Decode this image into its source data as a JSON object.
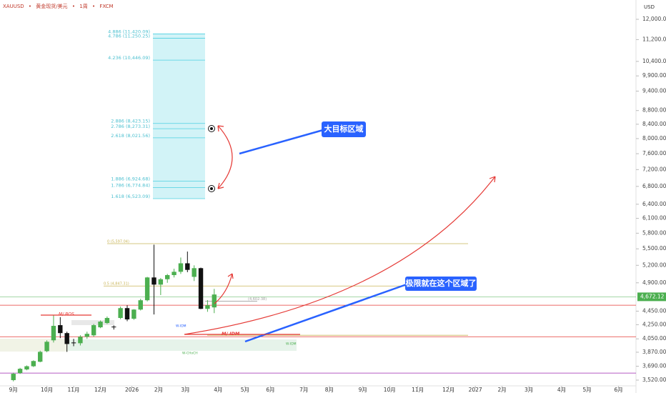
{
  "chart_data": {
    "type": "candlestick",
    "title": "XAUUSD",
    "subtitle": [
      "黄金现货/美元",
      "1周",
      "FXCM"
    ],
    "y_unit": "USD",
    "log_scale": true,
    "ylim": [
      3452,
      12814
    ],
    "yticks": [
      {
        "value": 12000,
        "label": "12,000.00"
      },
      {
        "value": 11200,
        "label": "11,200.00"
      },
      {
        "value": 10400,
        "label": "10,400.00"
      },
      {
        "value": 9900,
        "label": "9,900.00"
      },
      {
        "value": 9400,
        "label": "9,400.00"
      },
      {
        "value": 8800,
        "label": "8,800.00"
      },
      {
        "value": 8400,
        "label": "8,400.00"
      },
      {
        "value": 8000,
        "label": "8,000.00"
      },
      {
        "value": 7600,
        "label": "7,600.00"
      },
      {
        "value": 7200,
        "label": "7,200.00"
      },
      {
        "value": 6800,
        "label": "6,800.00"
      },
      {
        "value": 6400,
        "label": "6,400.00"
      },
      {
        "value": 6100,
        "label": "6,100.00"
      },
      {
        "value": 5800,
        "label": "5,800.00"
      },
      {
        "value": 5500,
        "label": "5,500.00"
      },
      {
        "value": 5200,
        "label": "5,200.00"
      },
      {
        "value": 4900,
        "label": "4,900.00"
      },
      {
        "value": 4450,
        "label": "4,450.00"
      },
      {
        "value": 4250,
        "label": "4,250.00"
      },
      {
        "value": 4050,
        "label": "4,050.00"
      },
      {
        "value": 3870,
        "label": "3,870.00"
      },
      {
        "value": 3690,
        "label": "3,690.00"
      },
      {
        "value": 3520,
        "label": "3,520.00"
      }
    ],
    "xlim": [
      -2,
      93
    ],
    "xticks": [
      {
        "value": 0,
        "label": "9月"
      },
      {
        "value": 5,
        "label": "10月"
      },
      {
        "value": 9,
        "label": "11月"
      },
      {
        "value": 13,
        "label": "12月"
      },
      {
        "value": 17.7,
        "label": "2026"
      },
      {
        "value": 21.7,
        "label": "2月"
      },
      {
        "value": 25.7,
        "label": "3月"
      },
      {
        "value": 30.6,
        "label": "4月"
      },
      {
        "value": 34.6,
        "label": "5月"
      },
      {
        "value": 38.4,
        "label": "6月"
      },
      {
        "value": 43.4,
        "label": "7月"
      },
      {
        "value": 47.2,
        "label": "8月"
      },
      {
        "value": 52.2,
        "label": "9月"
      },
      {
        "value": 56.2,
        "label": "10月"
      },
      {
        "value": 60.4,
        "label": "11月"
      },
      {
        "value": 65,
        "label": "12月"
      },
      {
        "value": 69,
        "label": "2027"
      },
      {
        "value": 73,
        "label": "2月"
      },
      {
        "value": 77,
        "label": "3月"
      },
      {
        "value": 81.9,
        "label": "4月"
      },
      {
        "value": 85.7,
        "label": "5月"
      },
      {
        "value": 90.4,
        "label": "6月"
      }
    ],
    "up_color": "#4caf50",
    "down_color": "#111111",
    "open": [
      3520,
      3605,
      3650,
      3690,
      3747,
      3884,
      4030,
      4243,
      4130,
      4000,
      3990,
      4079,
      4099,
      4212,
      4274,
      4222,
      4348,
      4496,
      4337,
      4474,
      4618,
      4990,
      4870,
      4960,
      5030,
      5087,
      5236,
      5000,
      5150,
      4485,
      4507
    ],
    "high": [
      3610,
      3670,
      3700,
      3765,
      3890,
      4030,
      4390,
      4360,
      4150,
      4050,
      4100,
      4150,
      4260,
      4310,
      4370,
      4240,
      4520,
      4540,
      4480,
      4640,
      5000,
      5578,
      4980,
      5050,
      5140,
      5340,
      5449,
      5200,
      5160,
      4620,
      4800
    ],
    "low": [
      3505,
      3595,
      3640,
      3680,
      3740,
      3870,
      4000,
      4060,
      3875,
      3950,
      3960,
      4050,
      4080,
      4200,
      4260,
      4180,
      4330,
      4300,
      4320,
      4460,
      4600,
      4400,
      4700,
      4900,
      4990,
      5050,
      5080,
      4930,
      4480,
      4440,
      4420
    ],
    "close": [
      3597,
      3658,
      3690,
      3756,
      3875,
      4010,
      4233,
      4130,
      3980,
      3990,
      4079,
      4120,
      4243,
      4295,
      4348,
      4212,
      4496,
      4327,
      4474,
      4618,
      4990,
      4870,
      4960,
      5030,
      5087,
      5236,
      5120,
      5150,
      4485,
      4540,
      4709
    ],
    "last_price": {
      "value": 4672.12,
      "label": "4,672.12"
    },
    "fib_levels": [
      {
        "value": 11420.09,
        "label": "4.886 (11,420.09)"
      },
      {
        "value": 11250.25,
        "label": "4.786 (11,250.25)"
      },
      {
        "value": 10446.09,
        "label": "4.236 (10,446.09)"
      },
      {
        "value": 8423.15,
        "label": "2.886 (8,423.15)"
      },
      {
        "value": 8273.31,
        "label": "2.786 (8,273.31)"
      },
      {
        "value": 8021.56,
        "label": "2.618 (8,021.56)"
      },
      {
        "value": 6924.68,
        "label": "1.886 (6,924.68)"
      },
      {
        "value": 6774.84,
        "label": "1.786 (6,774.84)"
      },
      {
        "value": 6523.09,
        "label": "1.618 (6,523.09)"
      }
    ],
    "fib_color": "#4dd0e1",
    "levels": [
      {
        "value": 5597.04,
        "label": "0 (5,597.04)",
        "color": "#c9b458"
      },
      {
        "value": 4847.31,
        "label": "0.5 (4,847.31)",
        "color": "#c9b458"
      },
      {
        "value": 4602.38,
        "label": "(4,602.38)",
        "color": "#9e9e9e"
      },
      {
        "value": 4541,
        "color": "#e53935"
      },
      {
        "value": 4100,
        "color": "#c9b458"
      },
      {
        "value": 4079,
        "color": "#e53935"
      },
      {
        "value": 3605,
        "color": "#9c27b0"
      }
    ],
    "markers": [
      "M/ BOS",
      "M/ IDM",
      "W-IDM",
      "W-CHoCH",
      "W-IDM"
    ],
    "annotations": [
      "大目标区域",
      "极限就在这个区域了"
    ]
  }
}
